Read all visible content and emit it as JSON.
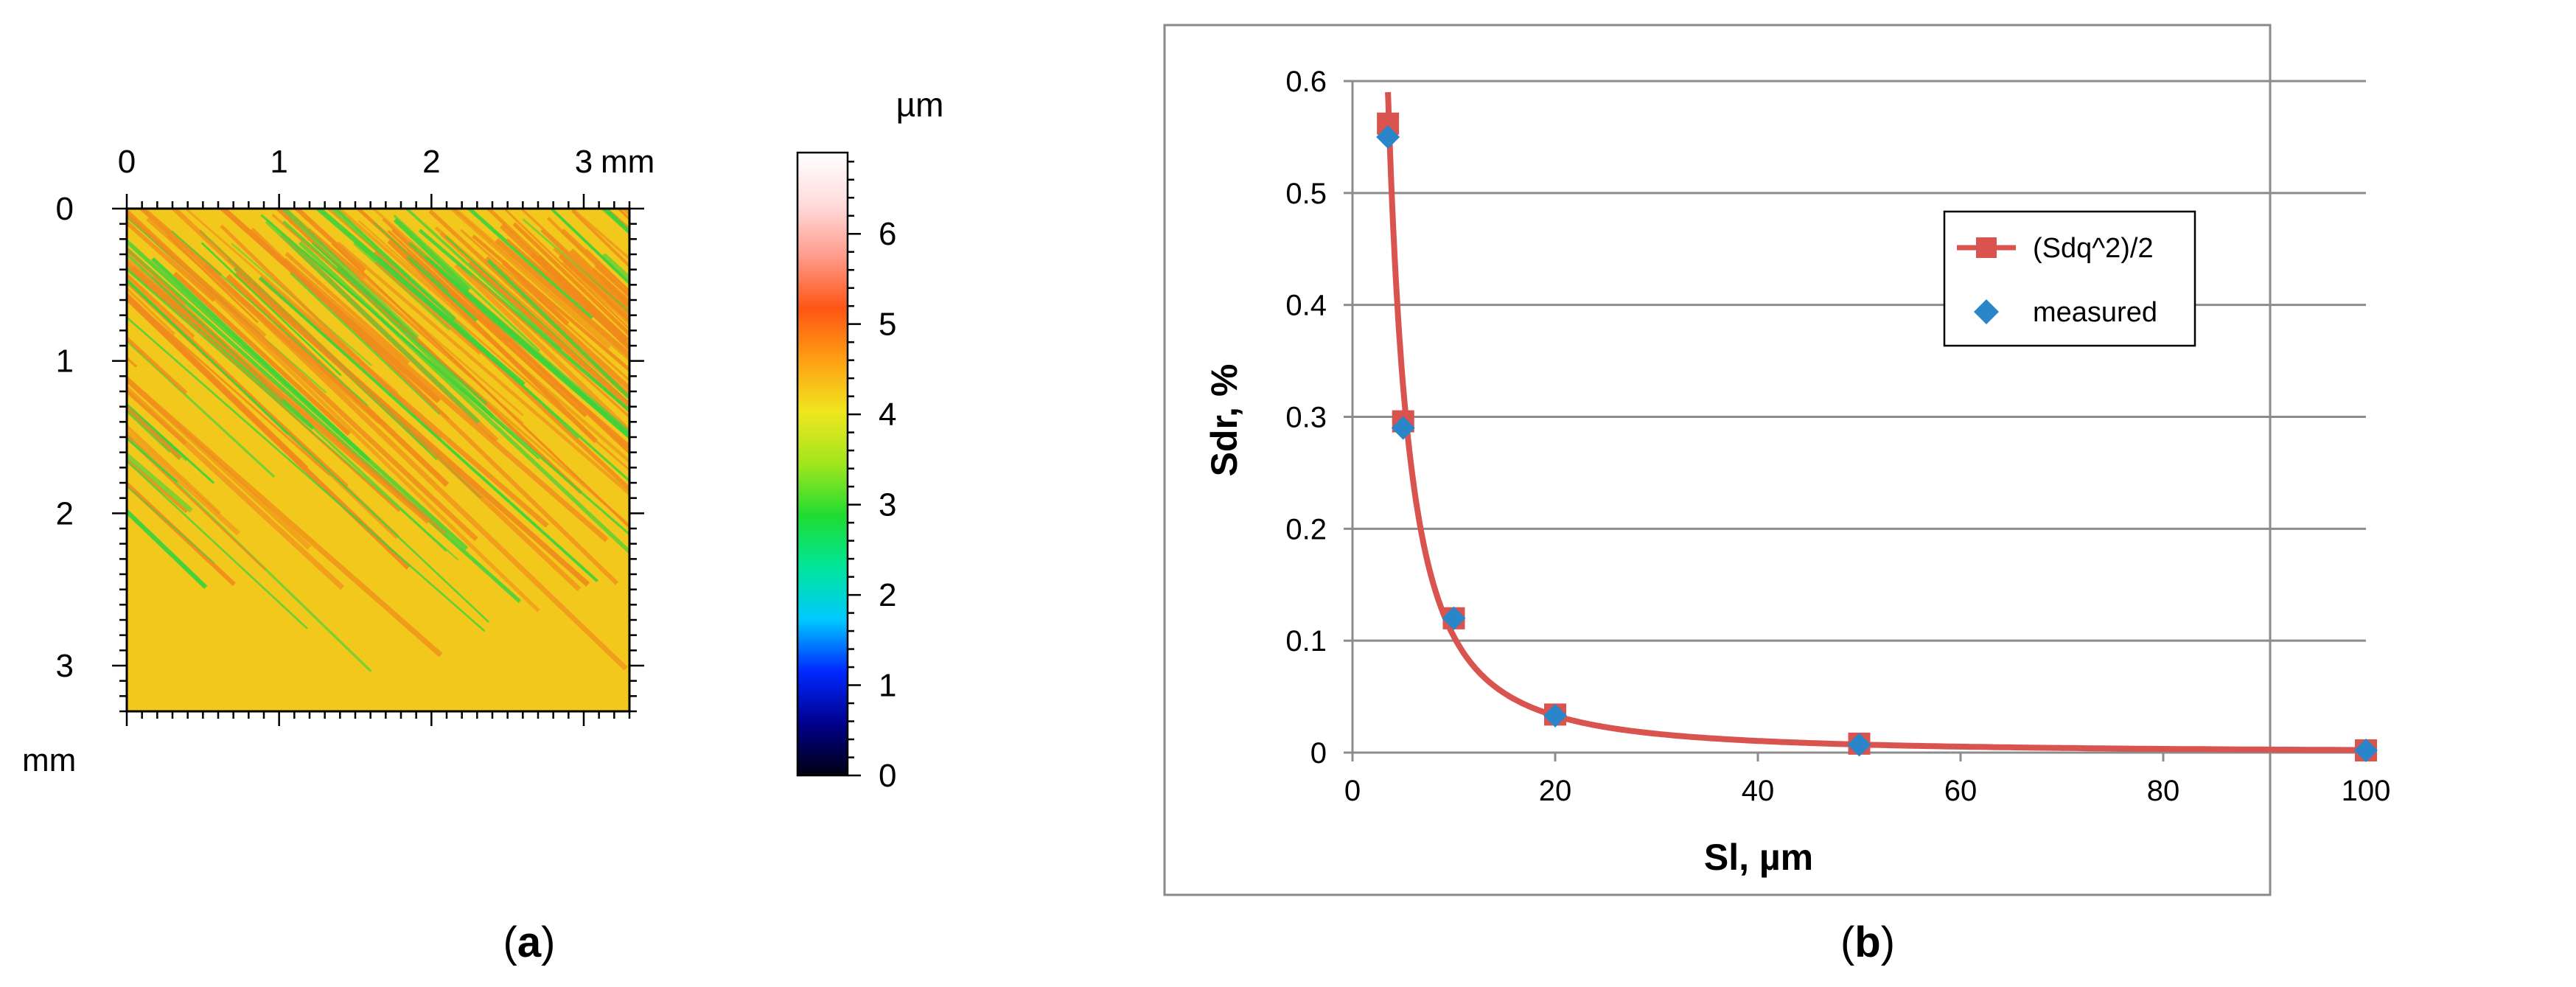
{
  "panel_a": {
    "caption_letter": "a",
    "x_ticks": [
      "0",
      "1",
      "2",
      "3"
    ],
    "x_unit": "mm",
    "y_ticks": [
      "0",
      "1",
      "2",
      "3"
    ],
    "y_unit": "mm",
    "x_range": [
      0,
      3.3
    ],
    "y_range": [
      0,
      3.3
    ],
    "colorbar": {
      "unit": "µm",
      "ticks": [
        "0",
        "1",
        "2",
        "3",
        "4",
        "5",
        "6"
      ],
      "range": [
        0,
        6.9
      ],
      "colors": [
        "#000010",
        "#00008c",
        "#0028ff",
        "#00c8ff",
        "#00e69b",
        "#1edc32",
        "#a0e61e",
        "#f0e61e",
        "#ffa014",
        "#ff5514",
        "#ff9b8c",
        "#ffdcdc",
        "#ffffff"
      ]
    },
    "map_colors": {
      "base": "#f2c81c",
      "high": "#f08a1c",
      "low": "#3cd23c"
    }
  },
  "chart_data": {
    "type": "scatter",
    "caption_letter": "b",
    "xlabel": "Sl, µm",
    "ylabel": "Sdr, %",
    "xlim": [
      0,
      100
    ],
    "ylim": [
      0,
      0.6
    ],
    "x_ticks": [
      0,
      20,
      40,
      60,
      80,
      100
    ],
    "y_ticks": [
      0,
      0.1,
      0.2,
      0.3,
      0.4,
      0.5,
      0.6
    ],
    "x_tick_labels": [
      "0",
      "20",
      "40",
      "60",
      "80",
      "100"
    ],
    "y_tick_labels": [
      "0",
      "0.1",
      "0.2",
      "0.3",
      "0.4",
      "0.5",
      "0.6"
    ],
    "grid": true,
    "legend_position": "upper-right",
    "series": [
      {
        "name": "(Sdq^2)/2",
        "style": "line-square",
        "color": "#d9534f",
        "x": [
          3.5,
          5,
          10,
          20,
          50,
          100
        ],
        "y": [
          0.562,
          0.296,
          0.12,
          0.034,
          0.008,
          0.002
        ]
      },
      {
        "name": "measured",
        "style": "diamond",
        "color": "#2a86c8",
        "x": [
          3.5,
          5,
          10,
          20,
          50,
          100
        ],
        "y": [
          0.55,
          0.29,
          0.12,
          0.033,
          0.007,
          0.002
        ]
      }
    ]
  }
}
